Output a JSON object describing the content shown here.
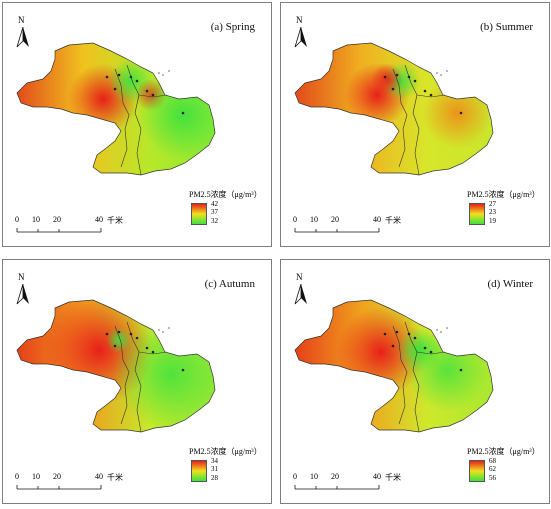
{
  "legend_title": "PM2.5浓度（μg/m³）",
  "scale_bar": {
    "labels": [
      "0",
      "10",
      "20",
      "40"
    ],
    "unit": "千米"
  },
  "north_label": "N",
  "panels": [
    {
      "title": "(a) Spring",
      "legend": {
        "max": "42",
        "mid": "37",
        "min": "32"
      }
    },
    {
      "title": "(b) Summer",
      "legend": {
        "max": "27",
        "mid": "23",
        "min": "19"
      }
    },
    {
      "title": "(c) Autumn",
      "legend": {
        "max": "34",
        "mid": "31",
        "min": "28"
      }
    },
    {
      "title": "(d) Winter",
      "legend": {
        "max": "68",
        "mid": "62",
        "min": "56"
      }
    }
  ],
  "colors": {
    "high": "#e8201a",
    "mid": "#f0e020",
    "low": "#3ee23e",
    "boundary": "#333333"
  }
}
